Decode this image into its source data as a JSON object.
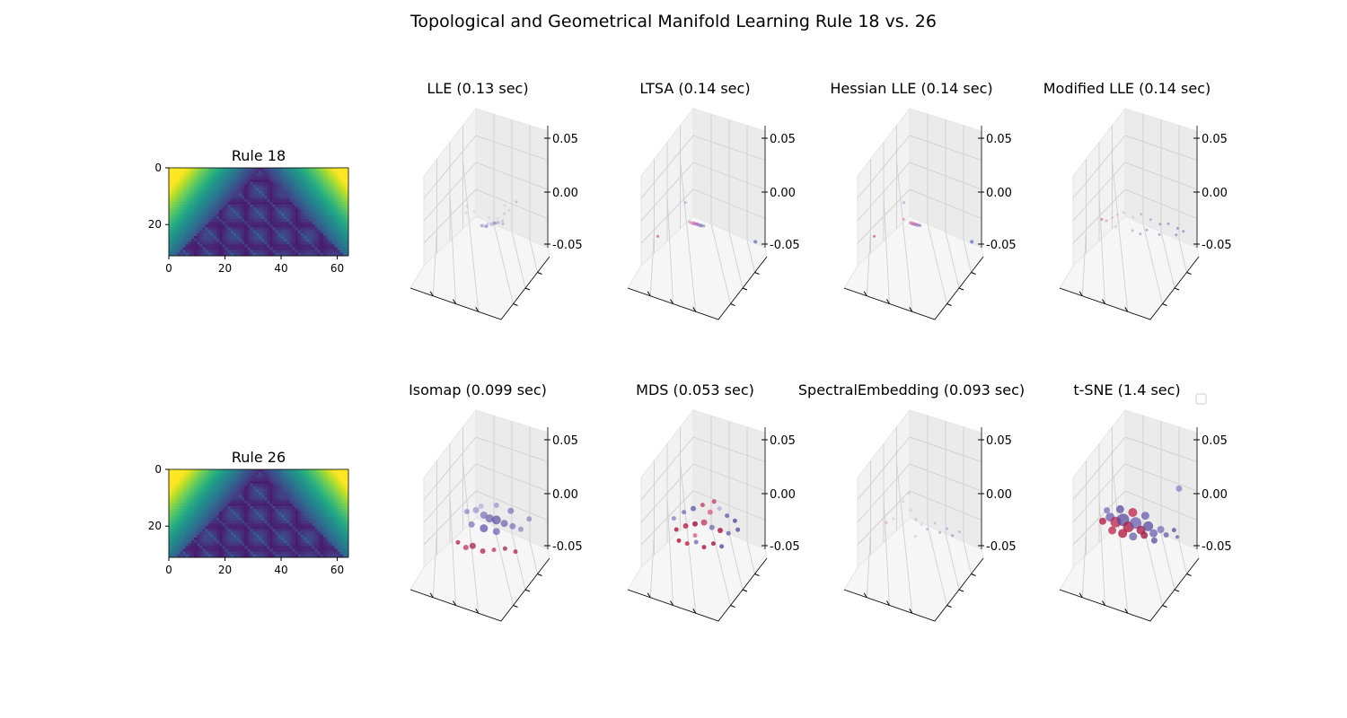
{
  "figure": {
    "title": "Topological and Geometrical Manifold Learning Rule 18 vs. 26"
  },
  "chart_data": [
    {
      "type": "heatmap",
      "title": "Rule 18",
      "x_ticks": [
        "0",
        "20",
        "40",
        "60"
      ],
      "y_ticks": [
        "0",
        "20"
      ],
      "xlim": [
        0,
        64
      ],
      "ylim": [
        0,
        31
      ],
      "colormap": "viridis"
    },
    {
      "type": "scatter",
      "title": "LLE (0.13 sec)",
      "z_ticks": [
        "0.05",
        "0.00",
        "-0.05"
      ],
      "alpha": 0.35,
      "points": [
        [
          0.62,
          0.42,
          0.004,
          4,
          "#7a6fb8"
        ],
        [
          0.58,
          0.45,
          0.002,
          4,
          "#6a5cad"
        ],
        [
          0.55,
          0.48,
          -0.001,
          5,
          "#8b7fc6"
        ],
        [
          0.5,
          0.5,
          -0.004,
          4,
          "#6a5cad"
        ],
        [
          0.52,
          0.44,
          0.001,
          3,
          "#9a90cd"
        ],
        [
          0.47,
          0.46,
          -0.003,
          4,
          "#6a5cad"
        ],
        [
          0.6,
          0.5,
          0.006,
          3,
          "#b6aedb"
        ],
        [
          0.54,
          0.4,
          0.01,
          3,
          "#b6aedb"
        ],
        [
          0.66,
          0.52,
          0.012,
          3,
          "#9a90cd"
        ],
        [
          0.44,
          0.55,
          -0.006,
          3,
          "#7a6fb8"
        ],
        [
          0.57,
          0.56,
          -0.002,
          3,
          "#6a5cad"
        ],
        [
          0.63,
          0.6,
          0.0,
          3,
          "#7a6fb8"
        ],
        [
          0.4,
          0.4,
          0.016,
          3,
          "#c9a3c9"
        ],
        [
          0.7,
          0.3,
          0.03,
          3,
          "#d9a0b8"
        ],
        [
          0.35,
          0.3,
          0.025,
          3,
          "#c9a3c9"
        ],
        [
          0.8,
          0.35,
          0.034,
          3,
          "#b06aa0"
        ],
        [
          0.75,
          0.25,
          0.026,
          3,
          "#c9a3c9"
        ],
        [
          0.3,
          0.55,
          0.008,
          3,
          "#d9a0b8"
        ],
        [
          0.48,
          0.58,
          -0.008,
          3,
          "#5a4ca2"
        ],
        [
          0.66,
          0.44,
          0.002,
          3,
          "#6a5cad"
        ]
      ]
    },
    {
      "type": "scatter",
      "title": "LTSA (0.14 sec)",
      "z_ticks": [
        "0.05",
        "0.00",
        "-0.05"
      ],
      "alpha": 0.6,
      "points": [
        [
          0.42,
          0.44,
          0.0,
          4,
          "#c040a0"
        ],
        [
          0.44,
          0.45,
          -0.001,
          4,
          "#b04d9e"
        ],
        [
          0.46,
          0.46,
          -0.002,
          4,
          "#8a5bb0"
        ],
        [
          0.48,
          0.47,
          -0.003,
          4,
          "#6a5cad"
        ],
        [
          0.4,
          0.42,
          0.001,
          4,
          "#c86aa0"
        ],
        [
          0.5,
          0.49,
          -0.004,
          3,
          "#7a6fb8"
        ],
        [
          0.38,
          0.4,
          0.003,
          3,
          "#d27aa8"
        ],
        [
          0.36,
          0.3,
          0.03,
          3,
          "#9a90cd"
        ],
        [
          0.08,
          0.45,
          -0.02,
          3,
          "#d0206a"
        ],
        [
          0.96,
          0.6,
          -0.022,
          4,
          "#3a50b0"
        ],
        [
          0.44,
          0.5,
          -0.002,
          3,
          "#9a90cd"
        ]
      ]
    },
    {
      "type": "scatter",
      "title": "Hessian LLE (0.14 sec)",
      "z_ticks": [
        "0.05",
        "0.00",
        "-0.05"
      ],
      "alpha": 0.6,
      "points": [
        [
          0.44,
          0.44,
          0.0,
          4,
          "#c040a0"
        ],
        [
          0.46,
          0.45,
          -0.001,
          4,
          "#b04d9e"
        ],
        [
          0.48,
          0.46,
          -0.002,
          4,
          "#8a5bb0"
        ],
        [
          0.42,
          0.43,
          0.001,
          4,
          "#c86aa0"
        ],
        [
          0.5,
          0.48,
          -0.003,
          3,
          "#6a5cad"
        ],
        [
          0.38,
          0.3,
          0.03,
          3,
          "#9a90cd"
        ],
        [
          0.36,
          0.4,
          0.006,
          3,
          "#d27aa8"
        ],
        [
          0.08,
          0.45,
          -0.02,
          3,
          "#d0206a"
        ],
        [
          0.96,
          0.6,
          -0.022,
          4,
          "#3a50b0"
        ]
      ]
    },
    {
      "type": "scatter",
      "title": "Modified LLE (0.14 sec)",
      "z_ticks": [
        "0.05",
        "0.00",
        "-0.05"
      ],
      "alpha": 0.45,
      "points": [
        [
          0.2,
          0.4,
          0.004,
          3,
          "#d0206a"
        ],
        [
          0.24,
          0.42,
          0.002,
          3,
          "#d86090"
        ],
        [
          0.3,
          0.38,
          0.008,
          3,
          "#c9a3c9"
        ],
        [
          0.36,
          0.32,
          0.014,
          3,
          "#d9a0b8"
        ],
        [
          0.42,
          0.3,
          0.018,
          3,
          "#c9a3c9"
        ],
        [
          0.5,
          0.34,
          0.012,
          3,
          "#b6aedb"
        ],
        [
          0.58,
          0.3,
          0.018,
          3,
          "#9a90cd"
        ],
        [
          0.66,
          0.36,
          0.01,
          3,
          "#7a6fb8"
        ],
        [
          0.74,
          0.4,
          0.004,
          3,
          "#6a5cad"
        ],
        [
          0.82,
          0.38,
          0.006,
          3,
          "#5a4ca2"
        ],
        [
          0.9,
          0.42,
          0.0,
          3,
          "#4a3c9a"
        ],
        [
          0.6,
          0.5,
          -0.008,
          3,
          "#6a5cad"
        ],
        [
          0.46,
          0.55,
          -0.012,
          3,
          "#8b7fc6"
        ],
        [
          0.86,
          0.58,
          -0.014,
          3,
          "#4a3c9a"
        ],
        [
          0.7,
          0.6,
          -0.016,
          3,
          "#6a5cad"
        ],
        [
          0.3,
          0.58,
          -0.01,
          3,
          "#c9a3c9"
        ],
        [
          0.52,
          0.62,
          -0.018,
          3,
          "#7a6fb8"
        ],
        [
          0.94,
          0.5,
          -0.006,
          3,
          "#3a50b0"
        ]
      ]
    },
    {
      "type": "heatmap",
      "title": "Rule 26",
      "x_ticks": [
        "0",
        "20",
        "40",
        "60"
      ],
      "y_ticks": [
        "0",
        "20"
      ],
      "xlim": [
        0,
        64
      ],
      "ylim": [
        0,
        31
      ],
      "colormap": "viridis"
    },
    {
      "type": "scatter",
      "title": "Isomap (0.099 sec)",
      "z_ticks": [
        "0.05",
        "0.00",
        "-0.05"
      ],
      "alpha": 0.7,
      "points": [
        [
          0.3,
          0.6,
          0.01,
          6,
          "#8b7fc6"
        ],
        [
          0.38,
          0.62,
          0.012,
          7,
          "#9a90cd"
        ],
        [
          0.46,
          0.58,
          0.008,
          8,
          "#7a6fb8"
        ],
        [
          0.52,
          0.54,
          0.006,
          9,
          "#6a5cad"
        ],
        [
          0.58,
          0.56,
          0.004,
          10,
          "#5a4ca2"
        ],
        [
          0.66,
          0.52,
          0.002,
          8,
          "#6a5cad"
        ],
        [
          0.74,
          0.5,
          0.0,
          7,
          "#7a6fb8"
        ],
        [
          0.82,
          0.48,
          -0.002,
          6,
          "#8b7fc6"
        ],
        [
          0.42,
          0.66,
          0.016,
          6,
          "#b6aedb"
        ],
        [
          0.56,
          0.68,
          0.018,
          6,
          "#9a90cd"
        ],
        [
          0.7,
          0.64,
          0.014,
          7,
          "#7a6fb8"
        ],
        [
          0.48,
          0.46,
          -0.004,
          9,
          "#5a4ca2"
        ],
        [
          0.6,
          0.44,
          -0.006,
          8,
          "#6a5cad"
        ],
        [
          0.36,
          0.5,
          -0.002,
          7,
          "#7a6fb8"
        ],
        [
          0.88,
          0.58,
          0.008,
          6,
          "#8b7fc6"
        ],
        [
          0.26,
          0.34,
          -0.02,
          5,
          "#b0103a"
        ],
        [
          0.34,
          0.3,
          -0.024,
          6,
          "#c0204a"
        ],
        [
          0.4,
          0.32,
          -0.022,
          7,
          "#a0103e"
        ],
        [
          0.5,
          0.28,
          -0.026,
          6,
          "#b0103a"
        ],
        [
          0.6,
          0.3,
          -0.024,
          5,
          "#c0204a"
        ],
        [
          0.7,
          0.32,
          -0.022,
          5,
          "#a0103e"
        ],
        [
          0.8,
          0.3,
          -0.024,
          5,
          "#b0103a"
        ]
      ]
    },
    {
      "type": "scatter",
      "title": "MDS (0.053 sec)",
      "z_ticks": [
        "0.05",
        "0.00",
        "-0.05"
      ],
      "alpha": 0.8,
      "points": [
        [
          0.22,
          0.5,
          0.004,
          5,
          "#8b7fc6"
        ],
        [
          0.3,
          0.58,
          0.01,
          5,
          "#7a6fb8"
        ],
        [
          0.38,
          0.62,
          0.014,
          6,
          "#6a5cad"
        ],
        [
          0.46,
          0.66,
          0.018,
          5,
          "#c0406a"
        ],
        [
          0.54,
          0.6,
          0.012,
          6,
          "#d86090"
        ],
        [
          0.62,
          0.64,
          0.016,
          5,
          "#b6aedb"
        ],
        [
          0.7,
          0.58,
          0.01,
          5,
          "#6a5cad"
        ],
        [
          0.78,
          0.54,
          0.006,
          5,
          "#5a4ca2"
        ],
        [
          0.26,
          0.4,
          -0.006,
          5,
          "#b0103a"
        ],
        [
          0.34,
          0.44,
          -0.002,
          6,
          "#c0204a"
        ],
        [
          0.42,
          0.48,
          0.0,
          6,
          "#a0103e"
        ],
        [
          0.5,
          0.5,
          0.002,
          7,
          "#c0406a"
        ],
        [
          0.58,
          0.46,
          -0.002,
          6,
          "#7a6fb8"
        ],
        [
          0.66,
          0.44,
          -0.004,
          6,
          "#b0103a"
        ],
        [
          0.74,
          0.42,
          -0.006,
          5,
          "#6a5cad"
        ],
        [
          0.82,
          0.46,
          -0.002,
          5,
          "#5a4ca2"
        ],
        [
          0.3,
          0.3,
          -0.016,
          5,
          "#b0103a"
        ],
        [
          0.38,
          0.28,
          -0.018,
          5,
          "#c0204a"
        ],
        [
          0.46,
          0.3,
          -0.016,
          5,
          "#7a6fb8"
        ],
        [
          0.54,
          0.26,
          -0.02,
          5,
          "#b0103a"
        ],
        [
          0.62,
          0.3,
          -0.016,
          5,
          "#a0103e"
        ],
        [
          0.7,
          0.28,
          -0.018,
          5,
          "#5a4ca2"
        ],
        [
          0.56,
          0.7,
          0.022,
          5,
          "#c0406a"
        ],
        [
          0.44,
          0.36,
          -0.01,
          5,
          "#d86090"
        ]
      ]
    },
    {
      "type": "scatter",
      "title": "SpectralEmbedding (0.093 sec)",
      "z_ticks": [
        "0.05",
        "0.00",
        "-0.05"
      ],
      "alpha": 0.4,
      "points": [
        [
          0.2,
          0.4,
          0.002,
          3,
          "#d86090"
        ],
        [
          0.26,
          0.44,
          0.006,
          3,
          "#c9a3c9"
        ],
        [
          0.32,
          0.62,
          0.022,
          3,
          "#d9a0b8"
        ],
        [
          0.36,
          0.7,
          0.03,
          3,
          "#c9a3c9"
        ],
        [
          0.4,
          0.56,
          0.014,
          3,
          "#b6aedb"
        ],
        [
          0.46,
          0.48,
          0.006,
          3,
          "#9a90cd"
        ],
        [
          0.52,
          0.44,
          0.002,
          3,
          "#b6aedb"
        ],
        [
          0.58,
          0.4,
          -0.002,
          3,
          "#7a6fb8"
        ],
        [
          0.64,
          0.46,
          0.004,
          3,
          "#9a90cd"
        ],
        [
          0.7,
          0.38,
          -0.004,
          3,
          "#6a5cad"
        ],
        [
          0.76,
          0.42,
          0.0,
          3,
          "#7a6fb8"
        ],
        [
          0.82,
          0.36,
          -0.006,
          3,
          "#5a4ca2"
        ],
        [
          0.88,
          0.4,
          -0.002,
          3,
          "#8b7fc6"
        ],
        [
          0.48,
          0.34,
          -0.01,
          3,
          "#c9a3c9"
        ]
      ]
    },
    {
      "type": "scatter",
      "title": "t-SNE (1.4 sec)",
      "z_ticks": [
        "0.05",
        "0.00",
        "-0.05"
      ],
      "alpha": 0.75,
      "points": [
        [
          0.2,
          0.45,
          0.002,
          8,
          "#b0103a"
        ],
        [
          0.26,
          0.5,
          0.006,
          10,
          "#6a5cad"
        ],
        [
          0.32,
          0.46,
          0.002,
          12,
          "#c0204a"
        ],
        [
          0.38,
          0.5,
          0.004,
          14,
          "#5a4ca2"
        ],
        [
          0.44,
          0.44,
          -0.002,
          12,
          "#b0103a"
        ],
        [
          0.5,
          0.48,
          0.002,
          13,
          "#6a5cad"
        ],
        [
          0.56,
          0.42,
          -0.004,
          10,
          "#a0103e"
        ],
        [
          0.62,
          0.46,
          0.0,
          11,
          "#5a4ca2"
        ],
        [
          0.68,
          0.4,
          -0.006,
          9,
          "#6a5cad"
        ],
        [
          0.74,
          0.44,
          -0.002,
          8,
          "#7a6fb8"
        ],
        [
          0.3,
          0.38,
          -0.006,
          9,
          "#c0204a"
        ],
        [
          0.4,
          0.36,
          -0.008,
          10,
          "#b0103a"
        ],
        [
          0.5,
          0.34,
          -0.01,
          9,
          "#6a5cad"
        ],
        [
          0.6,
          0.36,
          -0.008,
          8,
          "#a0103e"
        ],
        [
          0.7,
          0.32,
          -0.012,
          7,
          "#5a4ca2"
        ],
        [
          0.8,
          0.38,
          -0.006,
          6,
          "#6a5cad"
        ],
        [
          0.22,
          0.56,
          0.012,
          7,
          "#7a6fb8"
        ],
        [
          0.34,
          0.58,
          0.014,
          9,
          "#5a4ca2"
        ],
        [
          0.46,
          0.56,
          0.012,
          10,
          "#c0204a"
        ],
        [
          0.58,
          0.54,
          0.01,
          9,
          "#6a5cad"
        ],
        [
          0.86,
          0.74,
          0.04,
          7,
          "#8b7fc6"
        ],
        [
          0.86,
          0.46,
          -0.002,
          5,
          "#5a4ca2"
        ],
        [
          0.9,
          0.4,
          -0.008,
          4,
          "#6a5cad"
        ]
      ]
    }
  ]
}
